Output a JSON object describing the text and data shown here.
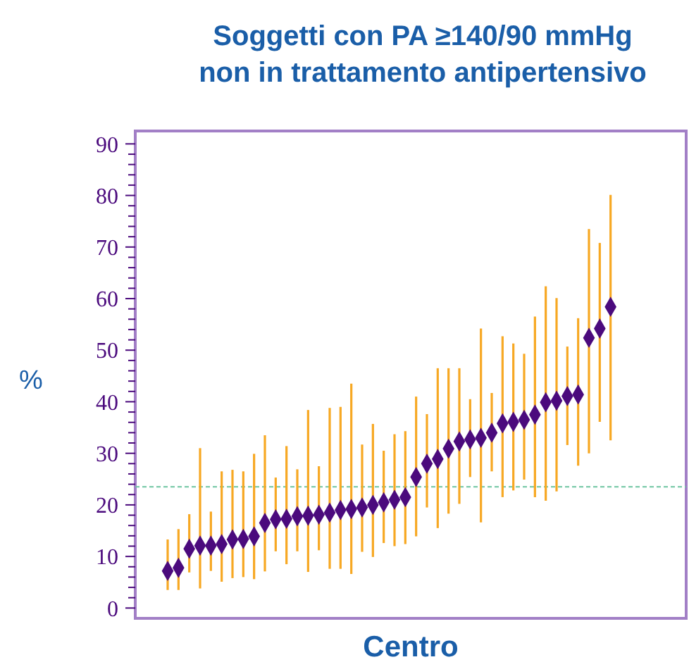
{
  "chart_data": {
    "type": "scatter",
    "title": "Soggetti con PA ≥140/90 mmHg\nnon in trattamento antipertensivo",
    "xlabel": "Centro",
    "ylabel": "%",
    "categories": [
      null,
      null,
      null,
      null,
      null,
      null,
      null,
      null,
      null,
      null,
      null,
      null,
      null,
      null,
      null,
      null,
      null,
      null,
      null,
      null,
      null,
      null,
      null,
      null,
      null,
      null,
      null,
      null,
      null,
      null,
      null,
      null,
      null,
      null,
      null,
      null,
      null,
      null,
      null,
      null,
      null,
      null,
      null,
      null,
      null,
      null,
      null,
      null,
      null,
      null,
      null,
      null
    ],
    "series": [
      {
        "color": "#4b0a7d",
        "values": [
          null,
          null,
          null,
          7.2,
          7.8,
          11.5,
          12.1,
          12.1,
          12.4,
          13.3,
          13.4,
          13.9,
          16.5,
          17.2,
          17.3,
          17.8,
          17.9,
          18.1,
          18.5,
          19.0,
          19.2,
          19.5,
          20.0,
          20.5,
          21.0,
          21.5,
          25.4,
          28.0,
          28.9,
          30.9,
          32.3,
          32.7,
          33.0,
          34.0,
          35.8,
          36.1,
          36.5,
          37.5,
          39.9,
          40.2,
          41.1,
          41.4,
          52.4,
          54.2,
          58.4,
          null,
          null,
          null,
          null,
          null,
          null,
          null
        ],
        "errors": [
          null,
          null,
          null,
          [
            3.5,
            13.3
          ],
          [
            3.5,
            15.3
          ],
          [
            6.9,
            18.2
          ],
          [
            3.8,
            31.0
          ],
          [
            7.2,
            18.7
          ],
          [
            5.1,
            26.5
          ],
          [
            5.8,
            26.8
          ],
          [
            6.0,
            26.5
          ],
          [
            5.6,
            29.9
          ],
          [
            7.1,
            33.5
          ],
          [
            11.0,
            25.3
          ],
          [
            8.5,
            31.4
          ],
          [
            11.0,
            26.9
          ],
          [
            7.0,
            38.4
          ],
          [
            11.2,
            27.5
          ],
          [
            7.6,
            38.8
          ],
          [
            7.6,
            39.0
          ],
          [
            6.6,
            43.5
          ],
          [
            10.9,
            31.7
          ],
          [
            9.9,
            35.7
          ],
          [
            12.6,
            30.5
          ],
          [
            12.0,
            33.7
          ],
          [
            12.4,
            34.3
          ],
          [
            13.9,
            41.0
          ],
          [
            19.5,
            37.6
          ],
          [
            15.5,
            46.5
          ],
          [
            18.3,
            46.5
          ],
          [
            20.2,
            46.5
          ],
          [
            25.4,
            40.5
          ],
          [
            16.6,
            54.2
          ],
          [
            26.5,
            41.7
          ],
          [
            21.5,
            52.7
          ],
          [
            22.8,
            51.3
          ],
          [
            24.9,
            49.3
          ],
          [
            21.5,
            56.5
          ],
          [
            20.8,
            62.4
          ],
          [
            22.6,
            60.1
          ],
          [
            31.6,
            50.7
          ],
          [
            27.6,
            56.2
          ],
          [
            30.0,
            73.5
          ],
          [
            36.1,
            70.8
          ],
          [
            32.5,
            80.1
          ],
          null,
          null,
          null,
          null,
          null,
          null,
          null
        ]
      }
    ],
    "marker": "diamond",
    "ylim": [
      -2,
      92.5
    ],
    "yticks": [
      0,
      {
        "value": 2,
        "label": null
      },
      {
        "value": 4,
        "label": null
      },
      {
        "value": 6,
        "label": null
      },
      {
        "value": 8,
        "label": null
      },
      10,
      {
        "value": 12,
        "label": null
      },
      {
        "value": 14,
        "label": null
      },
      {
        "value": 16,
        "label": null
      },
      {
        "value": 18,
        "label": null
      },
      20,
      {
        "value": 22,
        "label": null
      },
      {
        "value": 24,
        "label": null
      },
      {
        "value": 26,
        "label": null
      },
      {
        "value": 28,
        "label": null
      },
      30,
      {
        "value": 32,
        "label": null
      },
      {
        "value": 34,
        "label": null
      },
      {
        "value": 36,
        "label": null
      },
      {
        "value": 38,
        "label": null
      },
      40,
      {
        "value": 42,
        "label": null
      },
      {
        "value": 44,
        "label": null
      },
      {
        "value": 46,
        "label": null
      },
      {
        "value": 48,
        "label": null
      },
      50,
      {
        "value": 52,
        "label": null
      },
      {
        "value": 54,
        "label": null
      },
      {
        "value": 56,
        "label": null
      },
      {
        "value": 58,
        "label": null
      },
      60,
      {
        "value": 62,
        "label": null
      },
      {
        "value": 64,
        "label": null
      },
      {
        "value": 66,
        "label": null
      },
      {
        "value": 68,
        "label": null
      },
      70,
      {
        "value": 72,
        "label": null
      },
      {
        "value": 74,
        "label": null
      },
      {
        "value": 76,
        "label": null
      },
      {
        "value": 78,
        "label": null
      },
      80,
      {
        "value": 82,
        "label": null
      },
      {
        "value": 84,
        "label": null
      },
      {
        "value": 86,
        "label": null
      },
      {
        "value": 88,
        "label": null
      },
      90
    ],
    "ref_lines": [
      {
        "axis": "y",
        "value": 23.5,
        "color": "#6cc4a0",
        "line_style": "dashed"
      }
    ],
    "grid": false
  }
}
